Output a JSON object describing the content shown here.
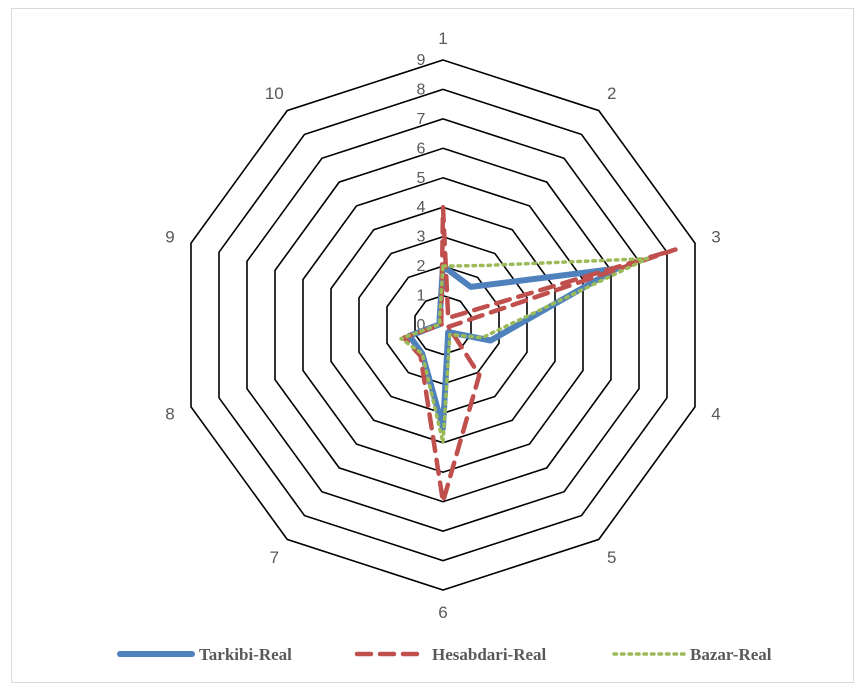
{
  "chart_data": {
    "type": "radar",
    "title": "",
    "categories": [
      "1",
      "2",
      "3",
      "4",
      "5",
      "6",
      "7",
      "8",
      "9",
      "10"
    ],
    "radial_ticks": [
      "0",
      "1",
      "2",
      "3",
      "4",
      "5",
      "6",
      "7",
      "8",
      "9"
    ],
    "rlim": [
      0,
      9
    ],
    "grid": true,
    "legend_position": "bottom",
    "series": [
      {
        "name": "Tarkibi-Real",
        "color": "#4f81bd",
        "style": "solid",
        "values": [
          2,
          1.6,
          6.2,
          1.7,
          0.3,
          3.5,
          1.2,
          1.2,
          0.1,
          0.2
        ]
      },
      {
        "name": "Hesabdari-Real",
        "color": "#c0504d",
        "style": "dashed",
        "values": [
          4,
          0.3,
          8.3,
          0.2,
          2.1,
          6,
          1.3,
          1.4,
          0.05,
          0.1
        ]
      },
      {
        "name": "Bazar-Real",
        "color": "#9bbb59",
        "style": "dotted",
        "values": [
          2,
          2.5,
          7.3,
          1.4,
          0.4,
          4,
          1.2,
          1.5,
          0.1,
          0.2
        ]
      }
    ]
  }
}
